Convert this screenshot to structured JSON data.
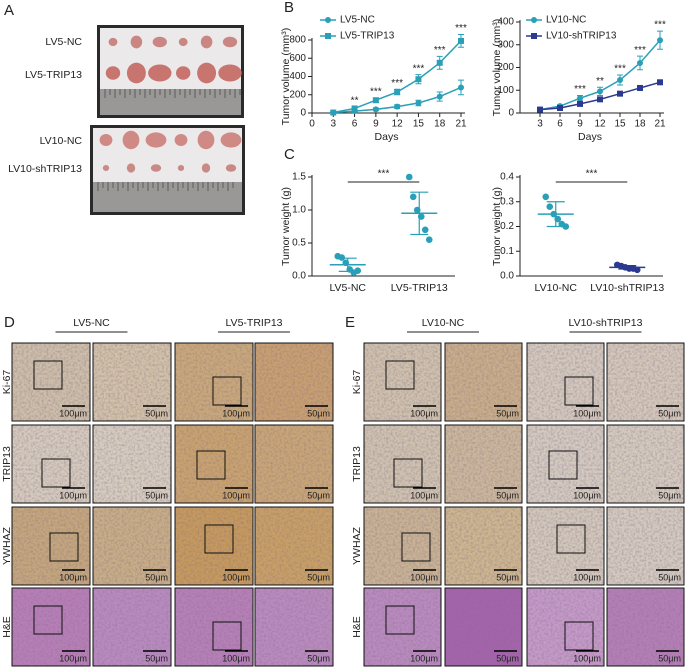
{
  "panel_labels": {
    "a": "A",
    "b": "B",
    "c": "C",
    "d": "D",
    "e": "E"
  },
  "panel_a": {
    "groups": [
      [
        "LV5-NC",
        "LV5-TRIP13"
      ],
      [
        "LV10-NC",
        "LV10-shTRIP13"
      ]
    ]
  },
  "chart_data": [
    {
      "type": "line",
      "ylabel": "Tumor volume (mm³)",
      "xlabel": "Days",
      "x": [
        3,
        6,
        9,
        12,
        15,
        18,
        21
      ],
      "xlim": [
        0,
        21
      ],
      "xticks": [
        0,
        3,
        6,
        9,
        12,
        15,
        18,
        21
      ],
      "ylim": [
        0,
        800
      ],
      "yticks": [
        0,
        200,
        400,
        600,
        800
      ],
      "legend": "upper left",
      "series": [
        {
          "name": "LV5-NC",
          "color": "#2a9fb8",
          "marker": "circle",
          "values": [
            5,
            20,
            40,
            70,
            110,
            180,
            280
          ],
          "errors": [
            3,
            8,
            15,
            20,
            30,
            50,
            80
          ]
        },
        {
          "name": "LV5-TRIP13",
          "color": "#2a9fb8",
          "marker": "square",
          "values": [
            5,
            50,
            140,
            230,
            370,
            550,
            790
          ],
          "errors": [
            5,
            15,
            25,
            30,
            50,
            70,
            70
          ]
        }
      ],
      "annotations": [
        {
          "x": 6,
          "text": "**"
        },
        {
          "x": 9,
          "text": "***"
        },
        {
          "x": 12,
          "text": "***"
        },
        {
          "x": 15,
          "text": "***"
        },
        {
          "x": 18,
          "text": "***"
        },
        {
          "x": 21,
          "text": "***"
        }
      ]
    },
    {
      "type": "line",
      "ylabel": "Tumor volume (mm³)",
      "xlabel": "Days",
      "x": [
        3,
        6,
        9,
        12,
        15,
        18,
        21
      ],
      "xlim": [
        0,
        21
      ],
      "xticks": [
        3,
        6,
        9,
        12,
        15,
        18,
        21
      ],
      "ylim": [
        0,
        400
      ],
      "yticks": [
        0,
        100,
        200,
        300,
        400
      ],
      "legend": "upper left",
      "series": [
        {
          "name": "LV10-NC",
          "color": "#2a9fb8",
          "marker": "circle",
          "values": [
            15,
            30,
            65,
            95,
            145,
            220,
            320
          ],
          "errors": [
            3,
            6,
            12,
            18,
            22,
            30,
            40
          ]
        },
        {
          "name": "LV10-shTRIP13",
          "color": "#2b3990",
          "marker": "square",
          "values": [
            15,
            22,
            40,
            60,
            85,
            110,
            135
          ],
          "errors": [
            2,
            3,
            5,
            6,
            7,
            8,
            6
          ]
        }
      ],
      "annotations": [
        {
          "x": 9,
          "text": "***"
        },
        {
          "x": 12,
          "text": "**"
        },
        {
          "x": 15,
          "text": "***"
        },
        {
          "x": 18,
          "text": "***"
        },
        {
          "x": 21,
          "text": "***"
        }
      ]
    },
    {
      "type": "dot",
      "ylabel": "Tumor weight (g)",
      "categories": [
        "LV5-NC",
        "LV5-TRIP13"
      ],
      "ylim": [
        0,
        1.5
      ],
      "yticks": [
        {
          "value": 0,
          "label": "0.0"
        },
        0.5,
        {
          "value": 1,
          "label": "1.0"
        },
        1.5
      ],
      "groups": [
        {
          "color": "#2a9fb8",
          "values": [
            0.3,
            0.28,
            0.2,
            0.1,
            0.05,
            0.08
          ],
          "mean": 0.17,
          "sd": 0.1
        },
        {
          "color": "#2a9fb8",
          "values": [
            1.5,
            1.2,
            1.0,
            0.9,
            0.7,
            0.55
          ],
          "mean": 0.95,
          "sd": 0.32
        }
      ],
      "significance": "***"
    },
    {
      "type": "dot",
      "ylabel": "Tumor weight (g)",
      "categories": [
        "LV10-NC",
        "LV10-shTRIP13"
      ],
      "ylim": [
        0,
        0.4
      ],
      "yticks": [
        {
          "value": 0,
          "label": "0.0"
        },
        0.1,
        0.2,
        0.3,
        0.4
      ],
      "groups": [
        {
          "color": "#2a9fb8",
          "values": [
            0.32,
            0.28,
            0.25,
            0.23,
            0.21,
            0.2
          ],
          "mean": 0.25,
          "sd": 0.05
        },
        {
          "color": "#2b3990",
          "values": [
            0.045,
            0.04,
            0.035,
            0.03,
            0.03,
            0.025
          ],
          "mean": 0.035,
          "sd": 0.007
        }
      ],
      "significance": "***"
    }
  ],
  "panel_d": {
    "columns": [
      "LV5-NC",
      "LV5-TRIP13"
    ],
    "rows": [
      "Ki-67",
      "TRIP13",
      "YWHAZ",
      "H&E"
    ],
    "scale_bars": [
      "100μm",
      "50μm"
    ]
  },
  "panel_e": {
    "columns": [
      "LV10-NC",
      "LV10-shTRIP13"
    ],
    "rows": [
      "Ki-67",
      "TRIP13",
      "YWHAZ",
      "H&E"
    ],
    "scale_bars": [
      "100μm",
      "50μm"
    ]
  }
}
